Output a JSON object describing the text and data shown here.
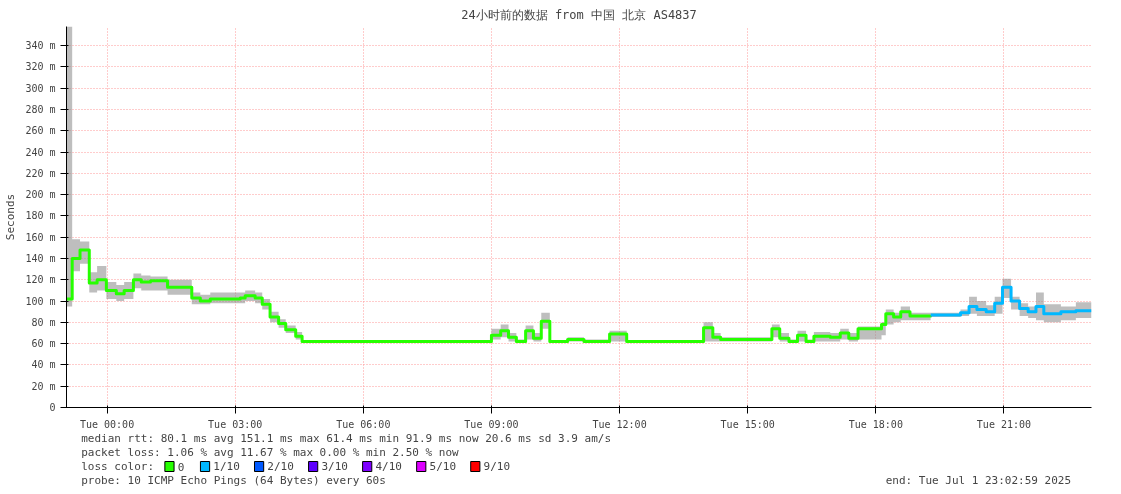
{
  "chart_data": {
    "type": "step",
    "title": "24小时前的数据 from 中国 北京 AS4837",
    "ylabel": "Seconds",
    "xlim": [
      "2025-06-30T23:03",
      "2025-07-01T23:03"
    ],
    "xticks": [
      {
        "value": "2025-07-01T00:00",
        "label": "Tue 00:00"
      },
      {
        "value": "2025-07-01T03:00",
        "label": "Tue 03:00"
      },
      {
        "value": "2025-07-01T06:00",
        "label": "Tue 06:00"
      },
      {
        "value": "2025-07-01T09:00",
        "label": "Tue 09:00"
      },
      {
        "value": "2025-07-01T12:00",
        "label": "Tue 12:00"
      },
      {
        "value": "2025-07-01T15:00",
        "label": "Tue 15:00"
      },
      {
        "value": "2025-07-01T18:00",
        "label": "Tue 18:00"
      },
      {
        "value": "2025-07-01T21:00",
        "label": "Tue 21:00"
      }
    ],
    "ylim": [
      0,
      358
    ],
    "yticks": [
      0,
      {
        "value": 20,
        "label": "20 m"
      },
      {
        "value": 40,
        "label": "40 m"
      },
      {
        "value": 60,
        "label": "60 m"
      },
      {
        "value": 80,
        "label": "80 m"
      },
      {
        "value": 100,
        "label": "100 m"
      },
      {
        "value": 120,
        "label": "120 m"
      },
      {
        "value": 140,
        "label": "140 m"
      },
      {
        "value": 160,
        "label": "160 m"
      },
      {
        "value": 180,
        "label": "180 m"
      },
      {
        "value": 200,
        "label": "200 m"
      },
      {
        "value": 220,
        "label": "220 m"
      },
      {
        "value": 240,
        "label": "240 m"
      },
      {
        "value": 260,
        "label": "260 m"
      },
      {
        "value": 280,
        "label": "280 m"
      },
      {
        "value": 300,
        "label": "300 m"
      },
      {
        "value": 320,
        "label": "320 m"
      },
      {
        "value": 340,
        "label": "340 m"
      }
    ],
    "grid": true,
    "legend": "bottom left",
    "series": [
      {
        "name": "0",
        "color": "#26ff00",
        "x": [
          "2025-06-30T23:03",
          "2025-06-30T23:11",
          "2025-06-30T23:22",
          "2025-06-30T23:35",
          "2025-06-30T23:46",
          "2025-06-30T23:59",
          "2025-07-01T00:13",
          "2025-07-01T00:24",
          "2025-07-01T00:37",
          "2025-07-01T00:48",
          "2025-07-01T01:01",
          "2025-07-01T01:25",
          "2025-07-01T01:59",
          "2025-07-01T02:11",
          "2025-07-01T02:25",
          "2025-07-01T03:07",
          "2025-07-01T03:14",
          "2025-07-01T03:28",
          "2025-07-01T03:38",
          "2025-07-01T03:49",
          "2025-07-01T04:01",
          "2025-07-01T04:11",
          "2025-07-01T04:25",
          "2025-07-01T04:34",
          "2025-07-01T09:00",
          "2025-07-01T09:13",
          "2025-07-01T09:24",
          "2025-07-01T09:35",
          "2025-07-01T09:48",
          "2025-07-01T09:59",
          "2025-07-01T10:10",
          "2025-07-01T10:22",
          "2025-07-01T10:47",
          "2025-07-01T11:10",
          "2025-07-01T11:46",
          "2025-07-01T12:10",
          "2025-07-01T13:58",
          "2025-07-01T14:11",
          "2025-07-01T14:22",
          "2025-07-01T15:34",
          "2025-07-01T15:45",
          "2025-07-01T15:58",
          "2025-07-01T16:10",
          "2025-07-01T16:22",
          "2025-07-01T16:33",
          "2025-07-01T16:56",
          "2025-07-01T17:10",
          "2025-07-01T17:22",
          "2025-07-01T17:35",
          "2025-07-01T18:08",
          "2025-07-01T18:14",
          "2025-07-01T18:25",
          "2025-07-01T18:35",
          "2025-07-01T18:48",
          "2025-07-01T19:17"
        ],
        "values": [
          102,
          140,
          148,
          117,
          120,
          110,
          107,
          110,
          120,
          118,
          119,
          113,
          103,
          100,
          102,
          103,
          105,
          103,
          97,
          85,
          79,
          73,
          67,
          62,
          68,
          72,
          66,
          62,
          72,
          65,
          81,
          62,
          64,
          62,
          69,
          62,
          75,
          66,
          64,
          74,
          65,
          62,
          68,
          62,
          67,
          66,
          70,
          65,
          74,
          78,
          88,
          85,
          90,
          86,
          87
        ],
        "lower": [
          95,
          128,
          135,
          108,
          110,
          102,
          100,
          102,
          112,
          110,
          110,
          106,
          97,
          97,
          98,
          98,
          100,
          98,
          92,
          80,
          75,
          70,
          64,
          61,
          64,
          66,
          62,
          61,
          64,
          62,
          74,
          61,
          62,
          61,
          62,
          61,
          62,
          62,
          62,
          66,
          62,
          61,
          62,
          61,
          62,
          62,
          64,
          62,
          64,
          68,
          78,
          80,
          82,
          82,
          84
        ],
        "upper": [
          358,
          158,
          156,
          127,
          133,
          118,
          115,
          118,
          126,
          124,
          123,
          120,
          108,
          106,
          108,
          108,
          110,
          108,
          102,
          90,
          83,
          77,
          71,
          63,
          74,
          78,
          70,
          64,
          77,
          70,
          89,
          63,
          66,
          64,
          72,
          63,
          80,
          70,
          66,
          78,
          70,
          64,
          72,
          64,
          71,
          70,
          74,
          70,
          76,
          80,
          92,
          89,
          95,
          89,
          88
        ]
      },
      {
        "name": "1/10",
        "color": "#00b8ff",
        "x": [
          "2025-07-01T19:17",
          "2025-07-01T19:59",
          "2025-07-01T20:11",
          "2025-07-01T20:22",
          "2025-07-01T20:35",
          "2025-07-01T20:47",
          "2025-07-01T20:58",
          "2025-07-01T21:10",
          "2025-07-01T21:22",
          "2025-07-01T21:34",
          "2025-07-01T21:45",
          "2025-07-01T21:56",
          "2025-07-01T22:20",
          "2025-07-01T22:41",
          "2025-07-01T23:03"
        ],
        "values": [
          87,
          89,
          95,
          92,
          90,
          98,
          113,
          100,
          93,
          90,
          95,
          88,
          90,
          91,
          91
        ],
        "lower": [
          85,
          86,
          88,
          86,
          86,
          88,
          103,
          92,
          86,
          84,
          82,
          80,
          82,
          84,
          84
        ],
        "upper": [
          89,
          92,
          104,
          100,
          96,
          104,
          121,
          104,
          98,
          95,
          108,
          97,
          95,
          99,
          99
        ]
      },
      {
        "name": "2/10",
        "color": "#0059ff"
      },
      {
        "name": "3/10",
        "color": "#5e00ff"
      },
      {
        "name": "4/10",
        "color": "#7e00ff"
      },
      {
        "name": "5/10",
        "color": "#dd00ff"
      },
      {
        "name": "9/10",
        "color": "#ff0000"
      }
    ],
    "annotations": [
      "median rtt:  80.1 ms avg  151.1 ms max  61.4 ms min  91.9 ms now  20.6 ms sd  3.9  am/s",
      "packet loss: 1.06 % avg  11.67 % max  0.00 % min  2.50 % now",
      "loss color:",
      "probe:       10 ICMP Echo Pings (64 Bytes) every 60s",
      "end: Tue Jul  1 23:02:59 2025"
    ]
  }
}
